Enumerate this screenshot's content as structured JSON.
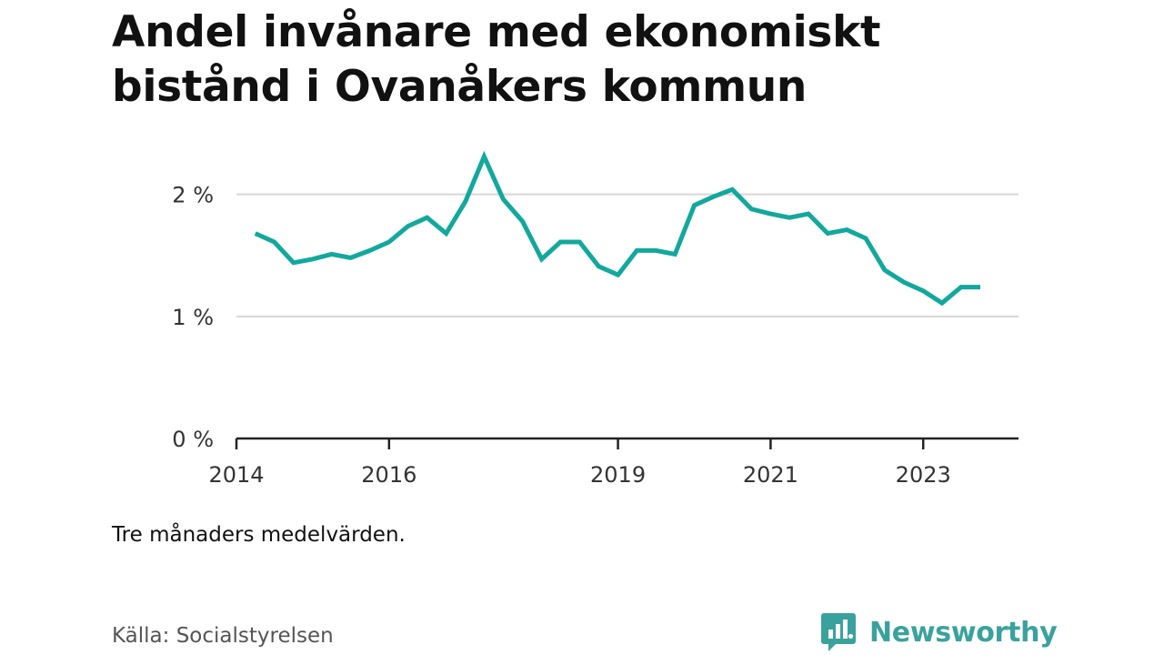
{
  "chart_data": {
    "type": "line",
    "title": "Andel invånare med ekonomiskt bistånd i Ovanåkers kommun",
    "subtitle": "",
    "xlabel": "",
    "ylabel": "",
    "x_ticks": [
      "2014",
      "2016",
      "2019",
      "2021",
      "2023"
    ],
    "y_ticks": [
      "0 %",
      "1 %",
      "2 %"
    ],
    "y_tick_values": [
      0,
      1,
      2
    ],
    "xlim": [
      "2014-01-01",
      "2024-04-01"
    ],
    "ylim": [
      0,
      2.4
    ],
    "grid": true,
    "legend": "none",
    "series": [
      {
        "name": "",
        "color": "#12a89d",
        "points": [
          [
            "2014-04-01",
            1.68
          ],
          [
            "2014-07-01",
            1.61
          ],
          [
            "2014-10-01",
            1.44
          ],
          [
            "2015-01-01",
            1.47
          ],
          [
            "2015-04-01",
            1.51
          ],
          [
            "2015-07-01",
            1.48
          ],
          [
            "2015-10-01",
            1.54
          ],
          [
            "2016-01-01",
            1.61
          ],
          [
            "2016-04-01",
            1.74
          ],
          [
            "2016-07-01",
            1.81
          ],
          [
            "2016-10-01",
            1.68
          ],
          [
            "2017-01-01",
            1.94
          ],
          [
            "2017-04-01",
            2.31
          ],
          [
            "2017-07-01",
            1.96
          ],
          [
            "2017-10-01",
            1.78
          ],
          [
            "2018-01-01",
            1.47
          ],
          [
            "2018-04-01",
            1.61
          ],
          [
            "2018-07-01",
            1.61
          ],
          [
            "2018-10-01",
            1.41
          ],
          [
            "2019-01-01",
            1.34
          ],
          [
            "2019-04-01",
            1.54
          ],
          [
            "2019-07-01",
            1.54
          ],
          [
            "2019-10-01",
            1.51
          ],
          [
            "2020-01-01",
            1.91
          ],
          [
            "2020-04-01",
            1.98
          ],
          [
            "2020-07-01",
            2.04
          ],
          [
            "2020-10-01",
            1.88
          ],
          [
            "2021-01-01",
            1.84
          ],
          [
            "2021-04-01",
            1.81
          ],
          [
            "2021-07-01",
            1.84
          ],
          [
            "2021-10-01",
            1.68
          ],
          [
            "2022-01-01",
            1.71
          ],
          [
            "2022-04-01",
            1.64
          ],
          [
            "2022-07-01",
            1.38
          ],
          [
            "2022-10-01",
            1.28
          ],
          [
            "2023-01-01",
            1.21
          ],
          [
            "2023-04-01",
            1.11
          ],
          [
            "2023-07-01",
            1.24
          ],
          [
            "2023-10-01",
            1.24
          ]
        ]
      }
    ]
  },
  "footer": {
    "note": "Tre månaders medelvärden.",
    "source": "Källa: Socialstyrelsen",
    "brand": "Newsworthy"
  },
  "colors": {
    "line": "#12a89d",
    "brand": "#3aa29d",
    "grid": "#d6d6d6",
    "axis": "#222222"
  },
  "icons": {
    "brand_logo": "bar-chart-speech-bubble-icon"
  }
}
